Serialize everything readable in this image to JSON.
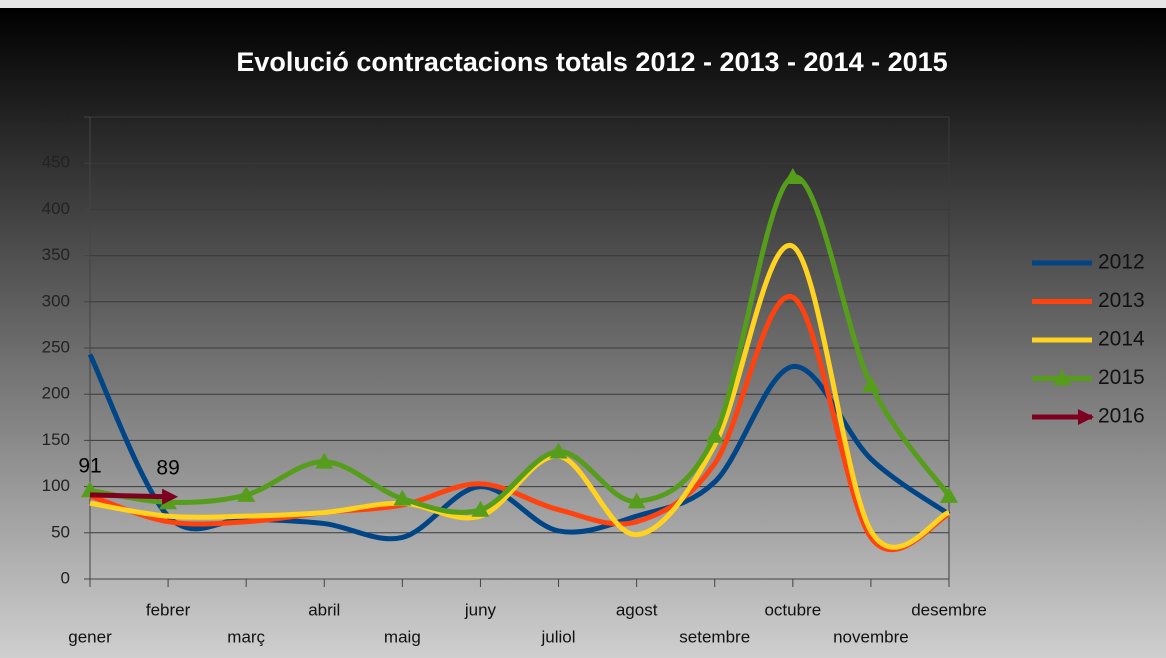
{
  "chart_data": {
    "type": "line",
    "title": "Evolució contractacions totals 2012 - 2013 - 2014 - 2015",
    "categories": [
      "gener",
      "febrer",
      "març",
      "abril",
      "maig",
      "juny",
      "juliol",
      "agost",
      "setembre",
      "octubre",
      "novembre",
      "desembre"
    ],
    "series": [
      {
        "name": "2012",
        "color": "#004586",
        "values": [
          243,
          68,
          65,
          60,
          45,
          100,
          52,
          68,
          105,
          230,
          130,
          70
        ]
      },
      {
        "name": "2013",
        "color": "#ff420e",
        "values": [
          90,
          62,
          62,
          72,
          80,
          103,
          75,
          62,
          125,
          305,
          45,
          70
        ]
      },
      {
        "name": "2014",
        "color": "#ffd320",
        "values": [
          82,
          68,
          68,
          72,
          82,
          68,
          133,
          48,
          145,
          360,
          52,
          72
        ]
      },
      {
        "name": "2015",
        "color": "#579d1c",
        "marker": "triangle",
        "values": [
          96,
          83,
          91,
          127,
          87,
          75,
          138,
          84,
          155,
          435,
          210,
          90
        ]
      },
      {
        "name": "2016",
        "color": "#7e0021",
        "marker": "arrow",
        "show_labels": true,
        "values": [
          91,
          89,
          null,
          null,
          null,
          null,
          null,
          null,
          null,
          null,
          null,
          null
        ]
      }
    ],
    "ylim": [
      0,
      500
    ],
    "yticks": [
      0,
      50,
      100,
      150,
      200,
      250,
      300,
      350,
      400,
      450,
      500
    ],
    "grid": true,
    "legend": "right"
  }
}
